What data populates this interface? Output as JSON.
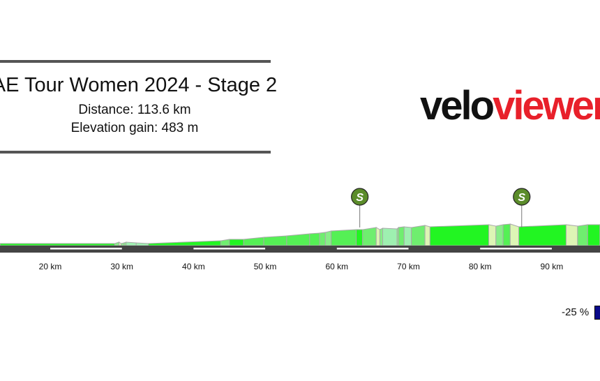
{
  "header": {
    "title": "AE Tour Women 2024 - Stage 2",
    "distance": "Distance: 113.6 km",
    "elevation_gain": "Elevation gain: 483 m"
  },
  "logo": {
    "part1": "velo",
    "part2": "viewer",
    "colors": {
      "velo": "#111111",
      "viewer": "#e8202a"
    }
  },
  "legend": {
    "label": "-25 %",
    "color": "#0a0a8a"
  },
  "chart_data": {
    "type": "area",
    "title": "",
    "xlabel": "",
    "ylabel": "",
    "x_unit": "km",
    "xlim": [
      13,
      96.7
    ],
    "x_ticks": [
      20,
      30,
      40,
      50,
      60,
      70,
      80,
      90
    ],
    "x_tick_labels": [
      "20 km",
      "30 km",
      "40 km",
      "50 km",
      "60 km",
      "70 km",
      "80 km",
      "90 km"
    ],
    "profile": [
      [
        13,
        15
      ],
      [
        29,
        15
      ],
      [
        29.6,
        25
      ],
      [
        29.9,
        15
      ],
      [
        30.3,
        20
      ],
      [
        30.6,
        25
      ],
      [
        32,
        20
      ],
      [
        33.7,
        15
      ],
      [
        43.8,
        35
      ],
      [
        45,
        45
      ],
      [
        47,
        45
      ],
      [
        49.8,
        60
      ],
      [
        53,
        70
      ],
      [
        56.2,
        85
      ],
      [
        57.6,
        90
      ],
      [
        58.4,
        95
      ],
      [
        59.2,
        105
      ],
      [
        62.7,
        115
      ],
      [
        63.6,
        115
      ],
      [
        65.5,
        130
      ],
      [
        66,
        115
      ],
      [
        66.4,
        125
      ],
      [
        68.4,
        120
      ],
      [
        68.6,
        130
      ],
      [
        69.4,
        135
      ],
      [
        70.4,
        130
      ],
      [
        72.3,
        145
      ],
      [
        73,
        135
      ],
      [
        81.2,
        150
      ],
      [
        82.2,
        140
      ],
      [
        83.2,
        150
      ],
      [
        84.2,
        155
      ],
      [
        85.4,
        135
      ],
      [
        92,
        150
      ],
      [
        93.6,
        140
      ],
      [
        95,
        150
      ],
      [
        96.7,
        150
      ]
    ],
    "sprints": [
      {
        "km": 63.2,
        "label": "S"
      },
      {
        "km": 85.8,
        "label": "S"
      }
    ],
    "marker_color": "#5b8c2a"
  }
}
